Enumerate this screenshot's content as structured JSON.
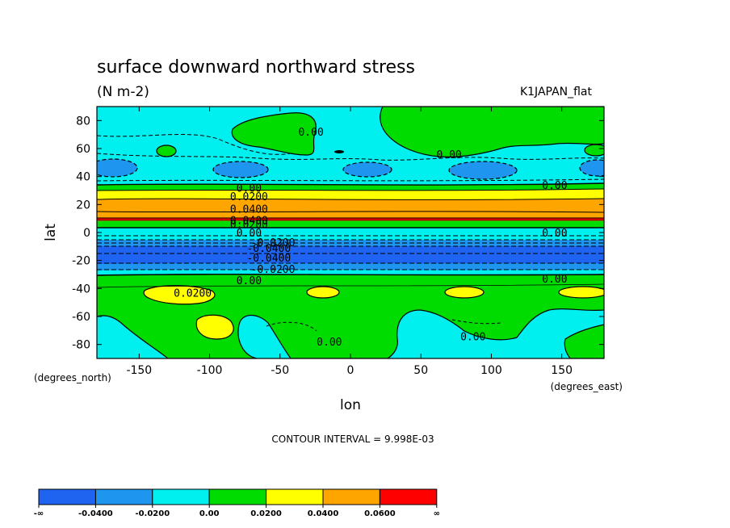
{
  "chart_data": {
    "type": "heatmap",
    "title": "surface downward northward stress",
    "units": "(N m-2)",
    "dataset": "K1JAPAN_flat",
    "xlabel": "lon",
    "ylabel": "lat",
    "x_units": "(degrees_east)",
    "y_units": "(degrees_north)",
    "xlim": [
      -180,
      180
    ],
    "ylim": [
      -90,
      90
    ],
    "x_ticks": [
      -150,
      -100,
      -50,
      0,
      50,
      100,
      150
    ],
    "y_ticks": [
      80,
      60,
      40,
      20,
      0,
      -20,
      -40,
      -60,
      -80
    ],
    "contour_interval": "CONTOUR INTERVAL = 9.998E-03",
    "colorbar": {
      "labels": [
        "-∞",
        "-0.0400",
        "-0.0200",
        "0.00",
        "0.0200",
        "0.0400",
        "0.0600",
        "∞"
      ],
      "colors": [
        "#1e64f0",
        "#1e96f0",
        "#00f0f0",
        "#00dc00",
        "#ffff00",
        "#ffa500",
        "#ff0000"
      ]
    },
    "contour_labels": [
      {
        "text": "0.00",
        "lon": -28,
        "lat": 72
      },
      {
        "text": "0.00",
        "lon": 70,
        "lat": 56
      },
      {
        "text": "0.00",
        "lon": 145,
        "lat": 34
      },
      {
        "text": "0.00",
        "lon": -72,
        "lat": 32
      },
      {
        "text": "0.0200",
        "lon": -72,
        "lat": 26
      },
      {
        "text": "0.0400",
        "lon": -72,
        "lat": 17
      },
      {
        "text": "0.0400",
        "lon": -72,
        "lat": 9
      },
      {
        "text": "0.0200",
        "lon": -72,
        "lat": 6
      },
      {
        "text": "0.00",
        "lon": -72,
        "lat": 0
      },
      {
        "text": "0.00",
        "lon": 145,
        "lat": 0
      },
      {
        "text": "-0.0200",
        "lon": -55,
        "lat": -7
      },
      {
        "text": "-0.0400",
        "lon": -58,
        "lat": -11
      },
      {
        "text": "-0.0400",
        "lon": -58,
        "lat": -18
      },
      {
        "text": "-0.0200",
        "lon": -55,
        "lat": -26
      },
      {
        "text": "0.00",
        "lon": -72,
        "lat": -34
      },
      {
        "text": "0.00",
        "lon": 145,
        "lat": -33
      },
      {
        "text": "0.0200",
        "lon": -112,
        "lat": -43
      },
      {
        "text": "0.00",
        "lon": -15,
        "lat": -78
      },
      {
        "text": "0.00",
        "lon": 87,
        "lat": -74
      }
    ]
  }
}
